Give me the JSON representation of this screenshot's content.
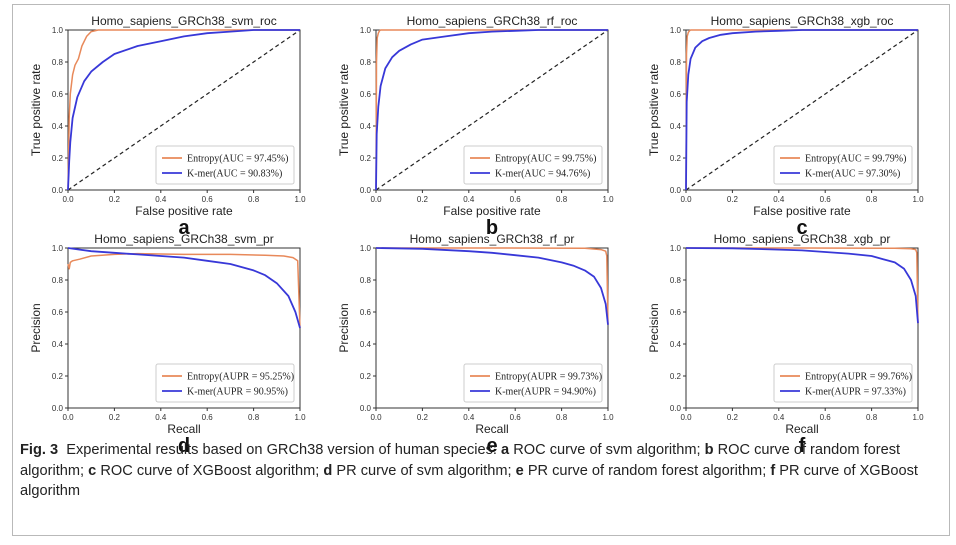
{
  "caption": {
    "lead": "Fig. 3",
    "intro": "Experimental results based on GRCh38 version of human species:",
    "items": [
      {
        "letter": "a",
        "text": "ROC curve of svm algorithm;"
      },
      {
        "letter": "b",
        "text": "ROC curve of random forest algorithm;"
      },
      {
        "letter": "c",
        "text": "ROC curve of XGBoost algorithm;"
      },
      {
        "letter": "d",
        "text": "PR curve of svm algorithm;"
      },
      {
        "letter": "e",
        "text": "PR curve of random forest algorithm;"
      },
      {
        "letter": "f",
        "text": "PR curve of XGBoost algorithm"
      }
    ]
  },
  "colors": {
    "entropy": "#e8895a",
    "kmer": "#3838d8",
    "diagonal": "#222222"
  },
  "chart_data": [
    {
      "panel": "a",
      "type": "line",
      "title": "Homo_sapiens_GRCh38_svm_roc",
      "xlabel": "False positive rate",
      "ylabel": "True positive rate",
      "xlim": [
        0,
        1
      ],
      "ylim": [
        0,
        1
      ],
      "xticks": [
        "0.0",
        "0.2",
        "0.4",
        "0.6",
        "0.8",
        "1.0"
      ],
      "yticks": [
        "0.0",
        "0.2",
        "0.4",
        "0.6",
        "0.8",
        "1.0"
      ],
      "legend_position": "lower-right",
      "diagonal": true,
      "series": [
        {
          "name": "Entropy(AUC = 97.45%)",
          "color": "#e8895a",
          "x": [
            0,
            0.005,
            0.01,
            0.02,
            0.03,
            0.045,
            0.06,
            0.08,
            0.1,
            0.13,
            1.0
          ],
          "y": [
            0,
            0.45,
            0.6,
            0.72,
            0.78,
            0.82,
            0.9,
            0.96,
            0.99,
            1.0,
            1.0
          ]
        },
        {
          "name": "K-mer(AUC = 90.83%)",
          "color": "#3838d8",
          "x": [
            0,
            0.005,
            0.01,
            0.02,
            0.04,
            0.07,
            0.1,
            0.15,
            0.2,
            0.3,
            0.4,
            0.5,
            0.6,
            0.7,
            0.8,
            1.0
          ],
          "y": [
            0,
            0.18,
            0.3,
            0.45,
            0.58,
            0.68,
            0.74,
            0.8,
            0.85,
            0.9,
            0.93,
            0.96,
            0.98,
            0.99,
            1.0,
            1.0
          ]
        }
      ]
    },
    {
      "panel": "b",
      "type": "line",
      "title": "Homo_sapiens_GRCh38_rf_roc",
      "xlabel": "False positive rate",
      "ylabel": "True positive rate",
      "xlim": [
        0,
        1
      ],
      "ylim": [
        0,
        1
      ],
      "xticks": [
        "0.0",
        "0.2",
        "0.4",
        "0.6",
        "0.8",
        "1.0"
      ],
      "yticks": [
        "0.0",
        "0.2",
        "0.4",
        "0.6",
        "0.8",
        "1.0"
      ],
      "legend_position": "lower-right",
      "diagonal": true,
      "series": [
        {
          "name": "Entropy(AUC = 99.75%)",
          "color": "#e8895a",
          "x": [
            0,
            0.002,
            0.005,
            0.01,
            0.015,
            0.02,
            1.0
          ],
          "y": [
            0,
            0.8,
            0.95,
            0.98,
            0.995,
            1.0,
            1.0
          ]
        },
        {
          "name": "K-mer(AUC = 94.76%)",
          "color": "#3838d8",
          "x": [
            0,
            0.003,
            0.01,
            0.02,
            0.04,
            0.07,
            0.1,
            0.15,
            0.2,
            0.3,
            0.4,
            0.5,
            0.6,
            0.7,
            1.0
          ],
          "y": [
            0,
            0.35,
            0.52,
            0.65,
            0.76,
            0.83,
            0.87,
            0.91,
            0.94,
            0.96,
            0.98,
            0.99,
            0.995,
            1.0,
            1.0
          ]
        }
      ]
    },
    {
      "panel": "c",
      "type": "line",
      "title": "Homo_sapiens_GRCh38_xgb_roc",
      "xlabel": "False positive rate",
      "ylabel": "True positive rate",
      "xlim": [
        0,
        1
      ],
      "ylim": [
        0,
        1
      ],
      "xticks": [
        "0.0",
        "0.2",
        "0.4",
        "0.6",
        "0.8",
        "1.0"
      ],
      "yticks": [
        "0.0",
        "0.2",
        "0.4",
        "0.6",
        "0.8",
        "1.0"
      ],
      "legend_position": "lower-right",
      "diagonal": true,
      "series": [
        {
          "name": "Entropy(AUC = 99.79%)",
          "color": "#e8895a",
          "x": [
            0,
            0.002,
            0.005,
            0.01,
            0.015,
            0.02,
            1.0
          ],
          "y": [
            0,
            0.85,
            0.96,
            0.985,
            0.995,
            1.0,
            1.0
          ]
        },
        {
          "name": "K-mer(AUC = 97.30%)",
          "color": "#3838d8",
          "x": [
            0,
            0.003,
            0.01,
            0.02,
            0.04,
            0.07,
            0.1,
            0.15,
            0.2,
            0.3,
            0.4,
            0.5,
            1.0
          ],
          "y": [
            0,
            0.55,
            0.72,
            0.82,
            0.89,
            0.93,
            0.95,
            0.97,
            0.98,
            0.99,
            0.995,
            1.0,
            1.0
          ]
        }
      ]
    },
    {
      "panel": "d",
      "type": "line",
      "title": "Homo_sapiens_GRCh38_svm_pr",
      "xlabel": "Recall",
      "ylabel": "Precision",
      "xlim": [
        0,
        1
      ],
      "ylim": [
        0,
        1
      ],
      "xticks": [
        "0.0",
        "0.2",
        "0.4",
        "0.6",
        "0.8",
        "1.0"
      ],
      "yticks": [
        "0.0",
        "0.2",
        "0.4",
        "0.6",
        "0.8",
        "1.0"
      ],
      "legend_position": "lower-right",
      "diagonal": false,
      "series": [
        {
          "name": "Entropy(AUPR = 95.25%)",
          "color": "#e8895a",
          "x": [
            0,
            0.005,
            0.01,
            0.02,
            0.05,
            0.1,
            0.2,
            0.3,
            0.5,
            0.7,
            0.85,
            0.93,
            0.97,
            0.99,
            1.0
          ],
          "y": [
            0.9,
            0.87,
            0.91,
            0.92,
            0.93,
            0.95,
            0.96,
            0.965,
            0.96,
            0.96,
            0.955,
            0.95,
            0.94,
            0.92,
            0.5
          ]
        },
        {
          "name": "K-mer(AUPR = 90.95%)",
          "color": "#3838d8",
          "x": [
            0,
            0.05,
            0.1,
            0.2,
            0.3,
            0.4,
            0.5,
            0.6,
            0.7,
            0.8,
            0.85,
            0.9,
            0.95,
            0.98,
            1.0
          ],
          "y": [
            1.0,
            0.99,
            0.98,
            0.97,
            0.96,
            0.95,
            0.94,
            0.92,
            0.9,
            0.86,
            0.83,
            0.78,
            0.7,
            0.6,
            0.5
          ]
        }
      ]
    },
    {
      "panel": "e",
      "type": "line",
      "title": "Homo_sapiens_GRCh38_rf_pr",
      "xlabel": "Recall",
      "ylabel": "Precision",
      "xlim": [
        0,
        1
      ],
      "ylim": [
        0,
        1
      ],
      "xticks": [
        "0.0",
        "0.2",
        "0.4",
        "0.6",
        "0.8",
        "1.0"
      ],
      "yticks": [
        "0.0",
        "0.2",
        "0.4",
        "0.6",
        "0.8",
        "1.0"
      ],
      "legend_position": "lower-right",
      "diagonal": false,
      "series": [
        {
          "name": "Entropy(AUPR = 99.73%)",
          "color": "#e8895a",
          "x": [
            0,
            0.5,
            0.9,
            0.97,
            0.99,
            0.995,
            1.0
          ],
          "y": [
            1.0,
            1.0,
            0.998,
            0.99,
            0.98,
            0.95,
            0.52
          ]
        },
        {
          "name": "K-mer(AUPR = 94.90%)",
          "color": "#3838d8",
          "x": [
            0,
            0.2,
            0.4,
            0.5,
            0.6,
            0.7,
            0.8,
            0.85,
            0.9,
            0.94,
            0.97,
            0.99,
            1.0
          ],
          "y": [
            1.0,
            0.995,
            0.98,
            0.97,
            0.955,
            0.94,
            0.91,
            0.89,
            0.86,
            0.82,
            0.75,
            0.65,
            0.52
          ]
        }
      ]
    },
    {
      "panel": "f",
      "type": "line",
      "title": "Homo_sapiens_GRCh38_xgb_pr",
      "xlabel": "Recall",
      "ylabel": "Precision",
      "xlim": [
        0,
        1
      ],
      "ylim": [
        0,
        1
      ],
      "xticks": [
        "0.0",
        "0.2",
        "0.4",
        "0.6",
        "0.8",
        "1.0"
      ],
      "yticks": [
        "0.0",
        "0.2",
        "0.4",
        "0.6",
        "0.8",
        "1.0"
      ],
      "legend_position": "lower-right",
      "diagonal": false,
      "series": [
        {
          "name": "Entropy(AUPR = 99.76%)",
          "color": "#e8895a",
          "x": [
            0,
            0.5,
            0.9,
            0.97,
            0.99,
            0.995,
            1.0
          ],
          "y": [
            1.0,
            1.0,
            0.998,
            0.995,
            0.99,
            0.97,
            0.53
          ]
        },
        {
          "name": "K-mer(AUPR = 97.33%)",
          "color": "#3838d8",
          "x": [
            0,
            0.2,
            0.4,
            0.5,
            0.6,
            0.7,
            0.8,
            0.85,
            0.9,
            0.94,
            0.97,
            0.99,
            1.0
          ],
          "y": [
            1.0,
            0.998,
            0.99,
            0.985,
            0.975,
            0.965,
            0.95,
            0.93,
            0.91,
            0.87,
            0.8,
            0.7,
            0.53
          ]
        }
      ]
    }
  ]
}
